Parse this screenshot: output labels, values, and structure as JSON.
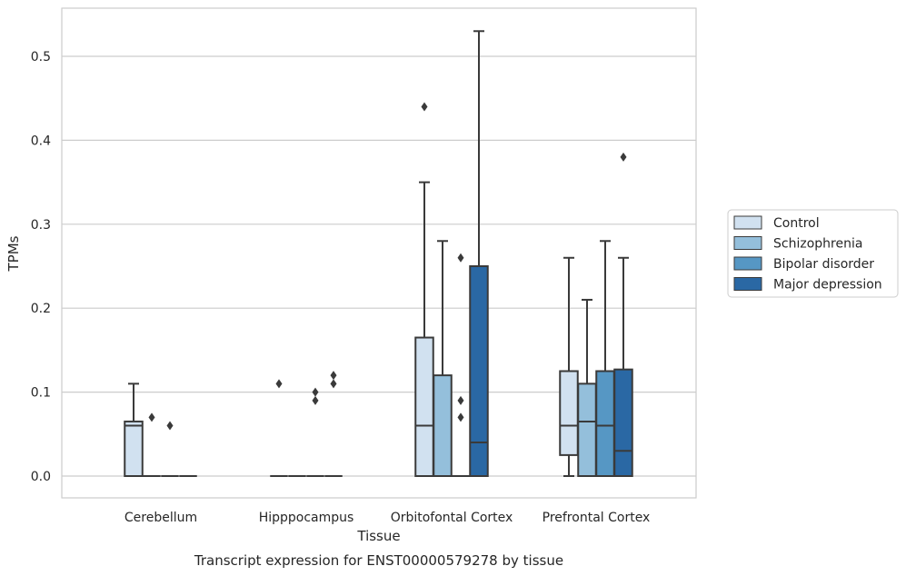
{
  "chart_data": {
    "type": "box",
    "caption": "Transcript expression for ENST00000579278 by tissue",
    "xlabel": "Tissue",
    "ylabel": "TPMs",
    "ylim": [
      -0.026,
      0.556
    ],
    "yticks": [
      0.0,
      0.1,
      0.2,
      0.3,
      0.4,
      0.5
    ],
    "ytick_labels": [
      "0.0",
      "0.1",
      "0.2",
      "0.3",
      "0.4",
      "0.5"
    ],
    "grid": true,
    "legend_position": "right",
    "categories": [
      "Cerebellum",
      "Hipppocampus",
      "Orbitofontal Cortex",
      "Prefrontal Cortex"
    ],
    "series": [
      {
        "name": "Control",
        "color": "#d1e1f0",
        "boxes": [
          {
            "q1": 0.0,
            "median": 0.06,
            "q3": 0.065,
            "whisker_low": 0.0,
            "whisker_high": 0.11,
            "outliers": []
          },
          {
            "q1": 0.0,
            "median": 0.0,
            "q3": 0.0,
            "whisker_low": 0.0,
            "whisker_high": 0.0,
            "outliers": [
              0.11
            ]
          },
          {
            "q1": 0.0,
            "median": 0.06,
            "q3": 0.165,
            "whisker_low": 0.0,
            "whisker_high": 0.35,
            "outliers": [
              0.44
            ]
          },
          {
            "q1": 0.025,
            "median": 0.06,
            "q3": 0.125,
            "whisker_low": 0.0,
            "whisker_high": 0.26,
            "outliers": []
          }
        ]
      },
      {
        "name": "Schizophrenia",
        "color": "#94bfdb",
        "boxes": [
          {
            "q1": 0.0,
            "median": 0.0,
            "q3": 0.0,
            "whisker_low": 0.0,
            "whisker_high": 0.0,
            "outliers": [
              0.07
            ]
          },
          {
            "q1": 0.0,
            "median": 0.0,
            "q3": 0.0,
            "whisker_low": 0.0,
            "whisker_high": 0.0,
            "outliers": []
          },
          {
            "q1": 0.0,
            "median": 0.0,
            "q3": 0.12,
            "whisker_low": 0.0,
            "whisker_high": 0.28,
            "outliers": []
          },
          {
            "q1": 0.0,
            "median": 0.065,
            "q3": 0.11,
            "whisker_low": 0.0,
            "whisker_high": 0.21,
            "outliers": []
          }
        ]
      },
      {
        "name": "Bipolar disorder",
        "color": "#5697c4",
        "boxes": [
          {
            "q1": 0.0,
            "median": 0.0,
            "q3": 0.0,
            "whisker_low": 0.0,
            "whisker_high": 0.0,
            "outliers": [
              0.06
            ]
          },
          {
            "q1": 0.0,
            "median": 0.0,
            "q3": 0.0,
            "whisker_low": 0.0,
            "whisker_high": 0.0,
            "outliers": [
              0.09,
              0.1
            ]
          },
          {
            "q1": 0.0,
            "median": 0.0,
            "q3": 0.0,
            "whisker_low": 0.0,
            "whisker_high": 0.0,
            "outliers": [
              0.07,
              0.09,
              0.26
            ]
          },
          {
            "q1": 0.0,
            "median": 0.06,
            "q3": 0.125,
            "whisker_low": 0.0,
            "whisker_high": 0.28,
            "outliers": []
          }
        ]
      },
      {
        "name": "Major depression",
        "color": "#2a68a4",
        "boxes": [
          {
            "q1": 0.0,
            "median": 0.0,
            "q3": 0.0,
            "whisker_low": 0.0,
            "whisker_high": 0.0,
            "outliers": []
          },
          {
            "q1": 0.0,
            "median": 0.0,
            "q3": 0.0,
            "whisker_low": 0.0,
            "whisker_high": 0.0,
            "outliers": [
              0.11,
              0.12
            ]
          },
          {
            "q1": 0.0,
            "median": 0.04,
            "q3": 0.25,
            "whisker_low": 0.0,
            "whisker_high": 0.53,
            "outliers": []
          },
          {
            "q1": 0.0,
            "median": 0.03,
            "q3": 0.127,
            "whisker_low": 0.0,
            "whisker_high": 0.26,
            "outliers": [
              0.38
            ]
          }
        ]
      }
    ]
  }
}
